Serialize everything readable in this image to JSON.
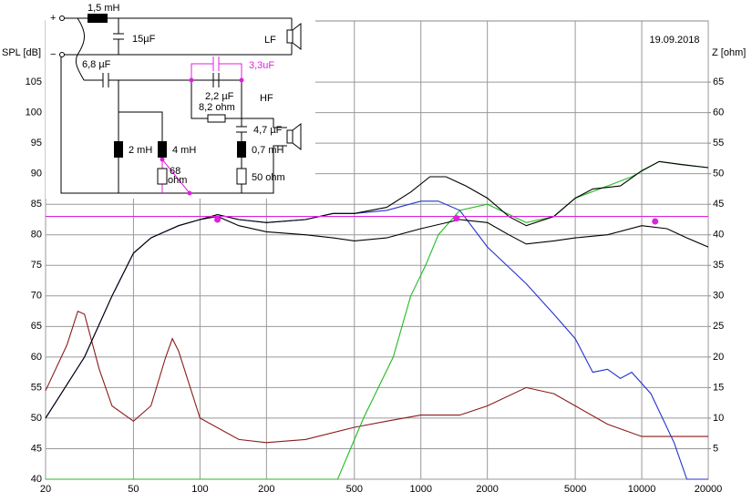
{
  "chart_data": {
    "type": "line",
    "date": "19.09.2018",
    "ylabel": "SPL [dB]",
    "y2label": "Z [ohm]",
    "xscale": "log",
    "xlim": [
      20,
      20000
    ],
    "xticks": [
      20,
      50,
      100,
      200,
      500,
      1000,
      2000,
      5000,
      10000,
      20000
    ],
    "ylim": [
      40,
      115
    ],
    "yticks": [
      40,
      45,
      50,
      55,
      60,
      65,
      70,
      75,
      80,
      85,
      90,
      95,
      100,
      105
    ],
    "y2lim": [
      0,
      75
    ],
    "y2ticks": [
      5,
      10,
      15,
      20,
      25,
      30,
      35,
      40,
      45,
      50,
      55,
      60,
      65
    ],
    "grid": true,
    "series": [
      {
        "color": "#8b1a1a",
        "axis": "y2",
        "x": [
          20,
          25,
          28,
          30,
          35,
          40,
          50,
          60,
          70,
          75,
          80,
          100,
          150,
          200,
          300,
          500,
          700,
          1000,
          1500,
          2000,
          3000,
          4000,
          5000,
          7000,
          10000,
          20000
        ],
        "values": [
          14.5,
          22,
          27.5,
          27,
          18,
          12,
          9.5,
          12,
          20,
          23,
          21,
          10,
          6.5,
          6,
          6.5,
          8.5,
          9.5,
          10.5,
          10.5,
          12,
          15,
          14,
          12,
          9,
          7,
          7
        ]
      },
      {
        "color": "#22bb22",
        "x": [
          20,
          420,
          550,
          750,
          900,
          1050,
          1200,
          1500,
          2000,
          3000,
          4000,
          5000,
          7000,
          9000,
          12000,
          20000
        ],
        "values": [
          40,
          40,
          50,
          60,
          70,
          75,
          80,
          84,
          85,
          82,
          83,
          86,
          88,
          89.5,
          92,
          91
        ]
      },
      {
        "color": "#2233cc",
        "x": [
          20,
          30,
          40,
          50,
          60,
          80,
          100,
          120,
          150,
          200,
          300,
          400,
          500,
          700,
          1000,
          1200,
          1500,
          2000,
          3000,
          4000,
          5000,
          6000,
          7000,
          8000,
          9000,
          11000,
          14000,
          16000,
          20000
        ],
        "values": [
          50,
          60,
          70,
          77,
          79.5,
          81.5,
          82.5,
          83.3,
          82.5,
          82,
          82.5,
          83.5,
          83.5,
          84,
          85.5,
          85.5,
          84,
          78,
          72,
          67,
          63,
          57.5,
          58,
          56.5,
          57.5,
          54,
          46,
          40,
          40
        ]
      },
      {
        "color": "#000000",
        "x": [
          20,
          30,
          40,
          50,
          60,
          80,
          100,
          120,
          150,
          200,
          300,
          400,
          500,
          700,
          900,
          1100,
          1300,
          1600,
          2000,
          2500,
          3000,
          4000,
          5000,
          6000,
          8000,
          10000,
          12000,
          15000,
          20000
        ],
        "values": [
          50,
          60,
          70,
          77,
          79.5,
          81.5,
          82.5,
          83.3,
          82.5,
          82,
          82.5,
          83.5,
          83.5,
          84.5,
          87,
          89.5,
          89.5,
          88,
          86,
          83,
          81.5,
          83,
          86,
          87.5,
          88,
          90.5,
          92,
          91.5,
          91
        ]
      },
      {
        "color": "#000000",
        "x": [
          100,
          120,
          150,
          200,
          300,
          400,
          500,
          700,
          1000,
          1500,
          2000,
          2500,
          3000,
          4000,
          5000,
          7000,
          10000,
          13000,
          16000,
          20000
        ],
        "values": [
          82.5,
          83,
          81.5,
          80.5,
          80,
          79.5,
          79,
          79.5,
          81,
          82.5,
          82,
          80,
          78.5,
          79,
          79.5,
          80,
          81.5,
          81,
          79.5,
          78
        ]
      },
      {
        "color": "#dd22dd",
        "x": [
          20,
          20000
        ],
        "values": [
          83,
          83
        ]
      }
    ],
    "markers": {
      "color": "#dd22dd",
      "x": [
        120,
        1450,
        11500
      ],
      "values": [
        82.5,
        82.7,
        82.2
      ]
    },
    "circuit": {
      "plus": "+",
      "minus": "−",
      "labels": [
        "1,5 mH",
        "15µF",
        "LF",
        "6,8 µF",
        "3,3uF",
        "HF",
        "2,2 µF",
        "8,2 ohm",
        "4,7 µF",
        "2 mH",
        "4 mH",
        "0,7 mH",
        "68",
        "ohm",
        "50 ohm"
      ]
    }
  }
}
